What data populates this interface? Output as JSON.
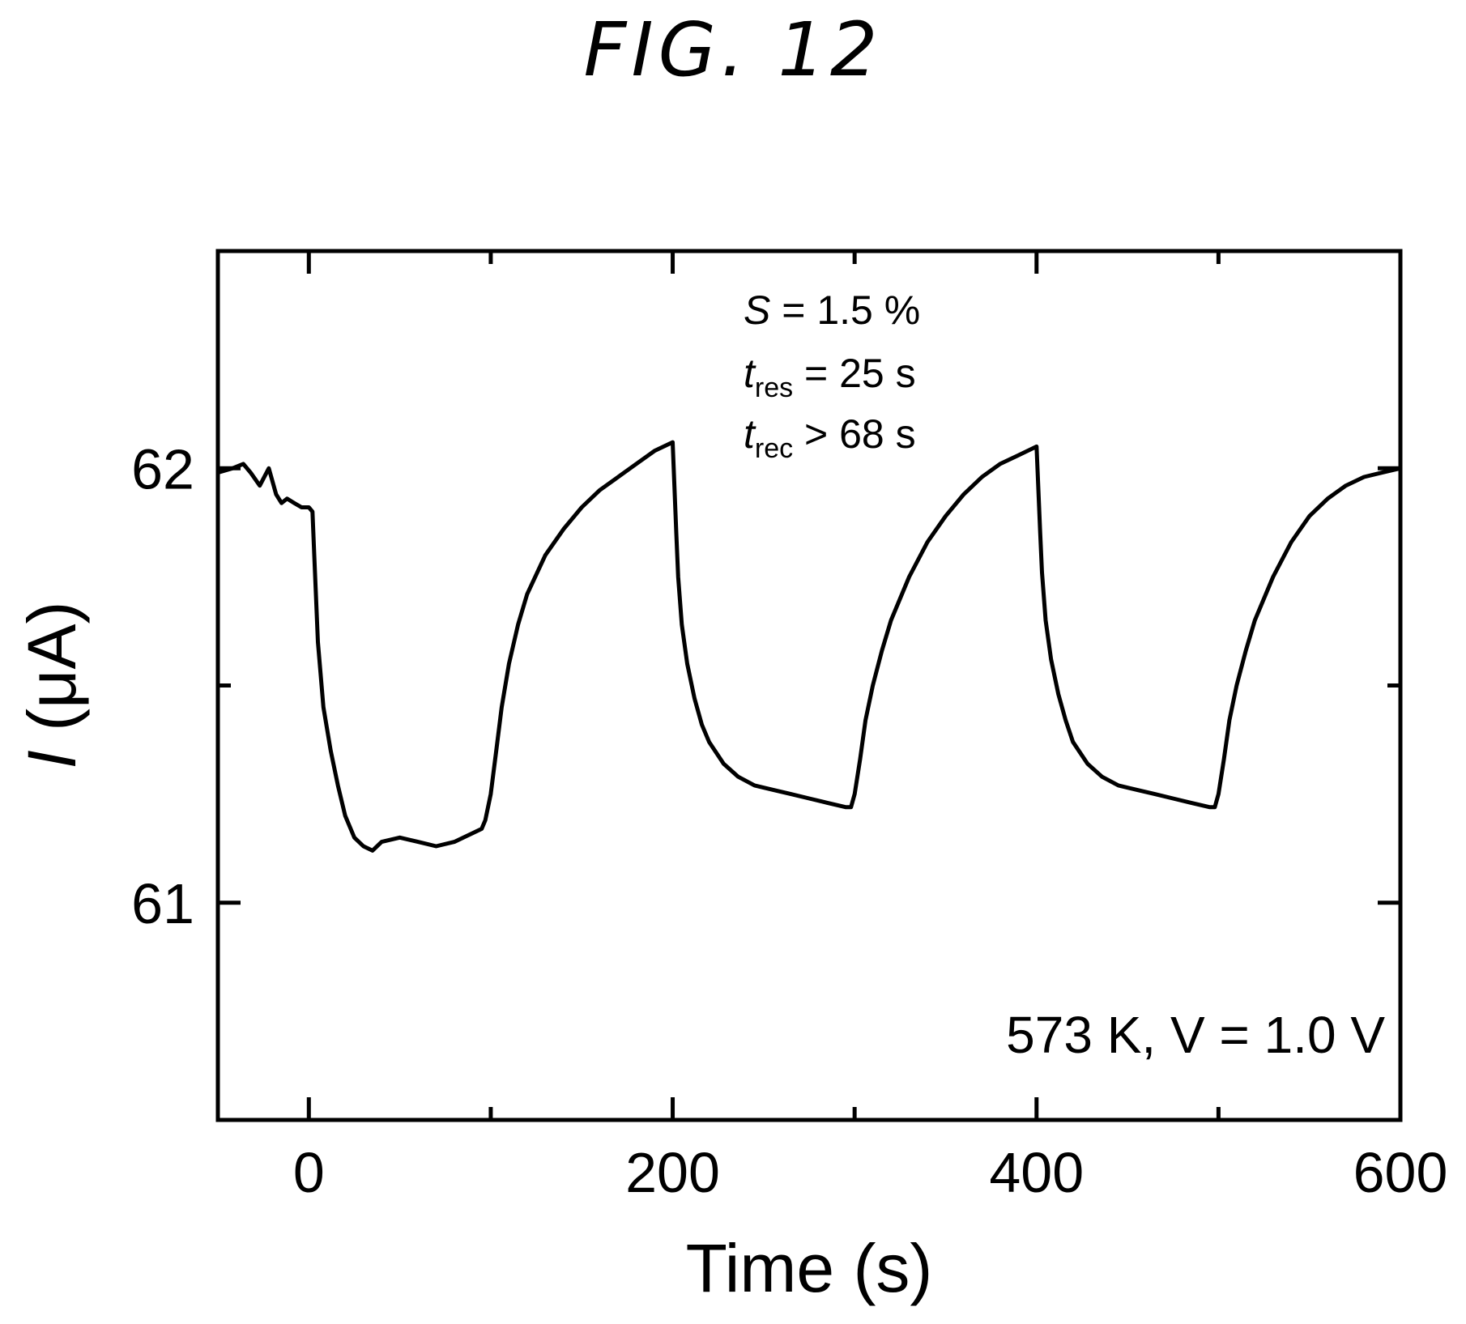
{
  "figure_title": "FIG. 12",
  "chart_data": {
    "type": "line",
    "xlabel": "Time (s)",
    "ylabel": {
      "symbol": "I",
      "unit": " (μA)"
    },
    "xlim": [
      -50,
      600
    ],
    "ylim": [
      60.5,
      62.5
    ],
    "x_ticks": [
      0,
      200,
      400,
      600
    ],
    "x_minor_ticks": [
      100,
      300,
      500
    ],
    "y_ticks": [
      61,
      62
    ],
    "y_minor_ticks": [
      61.5
    ],
    "grid": false,
    "annotations": {
      "S": {
        "symbol": "S",
        "sub": "",
        "rest": " = 1.5 %"
      },
      "t_res": {
        "symbol": "t",
        "sub": "res",
        "rest": " = 25 s"
      },
      "t_rec": {
        "symbol": "t",
        "sub": "rec",
        "rest": " > 68 s"
      },
      "conditions": "573 K, V = 1.0 V"
    },
    "series": [
      {
        "x": [
          -50,
          -42,
          -36,
          -32,
          -27,
          -22,
          -18,
          -15,
          -12,
          -8,
          -4,
          0,
          2,
          3,
          5,
          8,
          12,
          16,
          20,
          25,
          30,
          35,
          40,
          50,
          60,
          70,
          80,
          85,
          90,
          95,
          97,
          100,
          103,
          106,
          110,
          115,
          120,
          130,
          140,
          150,
          160,
          170,
          180,
          190,
          200,
          202,
          203,
          205,
          208,
          212,
          216,
          220,
          228,
          236,
          245,
          255,
          265,
          275,
          285,
          295,
          298,
          300,
          303,
          306,
          310,
          315,
          320,
          330,
          340,
          350,
          360,
          370,
          380,
          390,
          400,
          402,
          403,
          405,
          408,
          412,
          416,
          420,
          428,
          436,
          445,
          455,
          465,
          475,
          485,
          495,
          498,
          500,
          503,
          506,
          510,
          515,
          520,
          530,
          540,
          550,
          560,
          570,
          580,
          590,
          600
        ],
        "y": [
          61.99,
          62.0,
          62.01,
          61.99,
          61.96,
          62.0,
          61.94,
          61.92,
          61.93,
          61.92,
          61.91,
          61.91,
          61.9,
          61.8,
          61.6,
          61.45,
          61.35,
          61.27,
          61.2,
          61.15,
          61.13,
          61.12,
          61.14,
          61.15,
          61.14,
          61.13,
          61.14,
          61.15,
          61.16,
          61.17,
          61.19,
          61.25,
          61.35,
          61.45,
          61.55,
          61.64,
          61.71,
          61.8,
          61.86,
          61.91,
          61.95,
          61.98,
          62.01,
          62.04,
          62.06,
          61.85,
          61.75,
          61.64,
          61.55,
          61.47,
          61.41,
          61.37,
          61.32,
          61.29,
          61.27,
          61.26,
          61.25,
          61.24,
          61.23,
          61.22,
          61.22,
          61.25,
          61.33,
          61.42,
          61.5,
          61.58,
          61.65,
          61.75,
          61.83,
          61.89,
          61.94,
          61.98,
          62.01,
          62.03,
          62.05,
          61.85,
          61.76,
          61.65,
          61.56,
          61.48,
          61.42,
          61.37,
          61.32,
          61.29,
          61.27,
          61.26,
          61.25,
          61.24,
          61.23,
          61.22,
          61.22,
          61.25,
          61.33,
          61.42,
          61.5,
          61.58,
          61.65,
          61.75,
          61.83,
          61.89,
          61.93,
          61.96,
          61.98,
          61.99,
          62.0
        ]
      }
    ]
  }
}
